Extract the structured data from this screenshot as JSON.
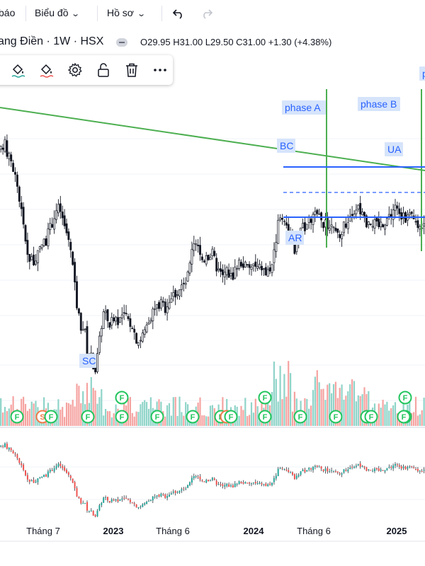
{
  "toolbar": {
    "partial_label": "báo",
    "chart_menu": "Biểu đồ",
    "profile_menu": "Hồ sơ"
  },
  "symbol": {
    "name": "ang Điền · 1W · HSX",
    "ohlc": "O29.95  H31.00  L29.50  C31.00  +1.30 (+4.38%)"
  },
  "colors": {
    "up": "#26a69a",
    "down": "#ef5350",
    "vol_up": "#8fd4c9",
    "vol_down": "#f5a3a1",
    "trendline": "#4caf50",
    "range_line": "#2962ff",
    "annotation_bg": "#d6e4fb",
    "signal_green": "#22c55e",
    "signal_orange": "#f07a4a"
  },
  "chart_data": {
    "type": "candlestick",
    "interval": "1W",
    "price_scale": [
      10,
      36
    ],
    "x_ticks": [
      "Tháng 7",
      "2023",
      "Tháng 6",
      "2024",
      "Tháng 6",
      "2025"
    ],
    "price_path": [
      [
        0,
        31.5
      ],
      [
        6,
        32.3
      ],
      [
        10,
        31.0
      ],
      [
        16,
        30.0
      ],
      [
        22,
        28.0
      ],
      [
        28,
        25.0
      ],
      [
        32,
        22.5
      ],
      [
        36,
        20.5
      ],
      [
        40,
        18.5
      ],
      [
        44,
        19.0
      ],
      [
        48,
        18.0
      ],
      [
        54,
        19.5
      ],
      [
        58,
        20.5
      ],
      [
        64,
        21.0
      ],
      [
        70,
        22.5
      ],
      [
        76,
        24.0
      ],
      [
        80,
        24.8
      ],
      [
        84,
        24.5
      ],
      [
        88,
        23.0
      ],
      [
        92,
        22.0
      ],
      [
        98,
        20.5
      ],
      [
        102,
        17.5
      ],
      [
        106,
        14.0
      ],
      [
        112,
        11.0
      ],
      [
        118,
        10.5
      ],
      [
        122,
        8.0
      ],
      [
        126,
        7.5
      ],
      [
        130,
        6.5
      ],
      [
        133,
        5.5
      ],
      [
        136,
        7.0
      ],
      [
        140,
        9.5
      ],
      [
        144,
        12.5
      ],
      [
        148,
        12.0
      ],
      [
        154,
        11.0
      ],
      [
        160,
        12.0
      ],
      [
        166,
        11.5
      ],
      [
        172,
        12.0
      ],
      [
        180,
        11.5
      ],
      [
        186,
        11.0
      ],
      [
        190,
        9.5
      ],
      [
        196,
        9.0
      ],
      [
        202,
        10.0
      ],
      [
        208,
        11.5
      ],
      [
        214,
        12.5
      ],
      [
        220,
        13.0
      ],
      [
        226,
        13.5
      ],
      [
        232,
        13.0
      ],
      [
        238,
        14.0
      ],
      [
        244,
        14.5
      ],
      [
        250,
        15.0
      ],
      [
        256,
        15.5
      ],
      [
        262,
        16.0
      ],
      [
        266,
        17.5
      ],
      [
        270,
        19.5
      ],
      [
        274,
        20.5
      ],
      [
        278,
        20.0
      ],
      [
        282,
        19.0
      ],
      [
        286,
        18.5
      ],
      [
        290,
        19.5
      ],
      [
        294,
        19.0
      ],
      [
        298,
        19.5
      ],
      [
        302,
        18.5
      ],
      [
        306,
        17.5
      ],
      [
        310,
        17.0
      ],
      [
        314,
        16.5
      ],
      [
        318,
        17.5
      ],
      [
        322,
        17.0
      ],
      [
        326,
        16.5
      ],
      [
        330,
        17.5
      ],
      [
        334,
        18.0
      ],
      [
        338,
        18.5
      ],
      [
        344,
        18.0
      ],
      [
        350,
        17.5
      ],
      [
        356,
        18.0
      ],
      [
        362,
        17.5
      ],
      [
        368,
        17.8
      ],
      [
        374,
        17.0
      ],
      [
        380,
        17.5
      ],
      [
        384,
        18.5
      ],
      [
        388,
        21.0
      ],
      [
        392,
        23.0
      ],
      [
        396,
        24.0
      ],
      [
        400,
        23.5
      ],
      [
        404,
        23.0
      ],
      [
        408,
        22.0
      ],
      [
        412,
        20.5
      ],
      [
        416,
        19.5
      ],
      [
        420,
        21.0
      ],
      [
        424,
        22.0
      ],
      [
        428,
        22.5
      ],
      [
        432,
        23.0
      ],
      [
        438,
        23.5
      ],
      [
        444,
        24.0
      ],
      [
        450,
        23.5
      ],
      [
        456,
        22.8
      ],
      [
        462,
        22.5
      ],
      [
        468,
        22.0
      ],
      [
        474,
        21.5
      ],
      [
        478,
        21.0
      ],
      [
        482,
        22.5
      ],
      [
        486,
        23.0
      ],
      [
        490,
        23.5
      ],
      [
        496,
        24.0
      ],
      [
        502,
        25.0
      ],
      [
        508,
        24.5
      ],
      [
        514,
        23.0
      ],
      [
        520,
        23.5
      ],
      [
        526,
        23.0
      ],
      [
        532,
        22.5
      ],
      [
        538,
        23.0
      ],
      [
        544,
        23.5
      ],
      [
        550,
        24.0
      ],
      [
        556,
        25.0
      ],
      [
        562,
        24.0
      ],
      [
        568,
        23.5
      ],
      [
        574,
        23.8
      ],
      [
        580,
        23.5
      ],
      [
        586,
        23.0
      ],
      [
        592,
        22.5
      ],
      [
        598,
        23.5
      ]
    ],
    "annotations": [
      {
        "text": "phase A"
      },
      {
        "text": "phase B"
      },
      {
        "text": "BC"
      },
      {
        "text": "UA"
      },
      {
        "text": "AR"
      },
      {
        "text": "SC"
      },
      {
        "text": "p"
      }
    ],
    "signals": [
      {
        "label": "F",
        "color": "green"
      },
      {
        "label": "S",
        "color": "orange"
      },
      {
        "label": "F",
        "color": "green"
      },
      {
        "label": "F",
        "color": "green"
      },
      {
        "label": "F",
        "color": "green"
      },
      {
        "label": "F",
        "color": "green"
      },
      {
        "label": "F",
        "color": "green"
      },
      {
        "label": "F",
        "color": "green"
      },
      {
        "label": "F",
        "color": "green"
      },
      {
        "label": "S",
        "color": "orange"
      },
      {
        "label": "F",
        "color": "green"
      },
      {
        "label": "F",
        "color": "green"
      },
      {
        "label": "F",
        "color": "green"
      },
      {
        "label": "F",
        "color": "green"
      },
      {
        "label": "F",
        "color": "green"
      },
      {
        "label": "F",
        "color": "green"
      },
      {
        "label": "F",
        "color": "green"
      },
      {
        "label": "F",
        "color": "green"
      },
      {
        "label": "F",
        "color": "green"
      },
      {
        "label": "F",
        "color": "green"
      }
    ]
  }
}
